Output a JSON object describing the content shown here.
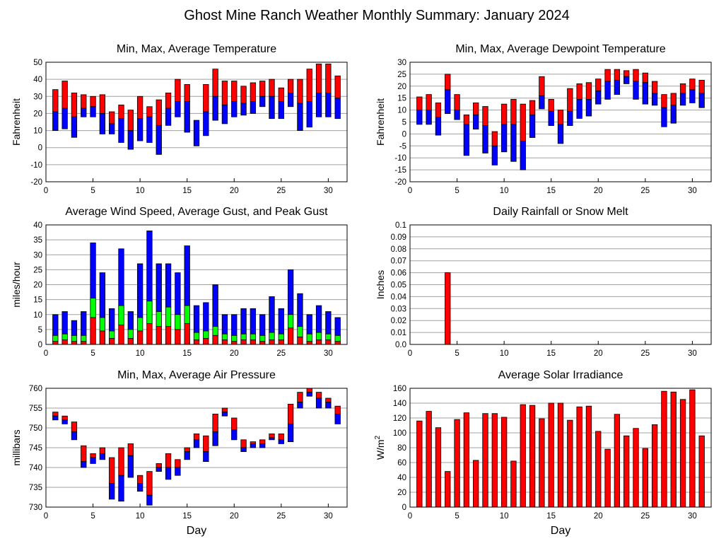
{
  "title": "Ghost Mine Ranch Weather Monthly Summary: January 2024",
  "colors": {
    "max": "#ff0000",
    "min": "#0000ff",
    "mid": "#00ff00",
    "grid": "#a0a0a0"
  },
  "chart_data": [
    {
      "type": "bar",
      "title": "Min, Max, Average Temperature",
      "ylabel": "Fahrenheit",
      "xlabel": "",
      "xlim": [
        0,
        32
      ],
      "ylim": [
        -20,
        50
      ],
      "yticks": [
        -20,
        -10,
        0,
        10,
        20,
        30,
        40,
        50
      ],
      "xticks": [
        0,
        5,
        10,
        15,
        20,
        25,
        30
      ],
      "x": [
        1,
        2,
        3,
        4,
        5,
        6,
        7,
        8,
        9,
        10,
        11,
        12,
        13,
        14,
        15,
        16,
        17,
        18,
        19,
        20,
        21,
        22,
        23,
        24,
        25,
        26,
        27,
        28,
        29,
        30,
        31
      ],
      "series": [
        {
          "name": "max",
          "values": [
            34,
            39,
            32,
            31,
            30,
            31,
            21,
            25,
            22,
            30,
            24,
            28,
            32,
            40,
            37,
            16,
            37,
            46,
            39,
            39,
            36,
            38,
            39,
            40,
            35,
            40,
            40,
            46,
            49,
            49,
            42
          ]
        },
        {
          "name": "avg",
          "values": [
            21,
            23,
            18,
            23,
            24,
            20,
            14,
            17,
            10,
            17,
            18,
            13,
            23,
            27,
            27,
            16,
            21,
            30,
            25,
            27,
            26,
            27,
            30,
            30,
            27,
            32,
            26,
            27,
            32,
            32,
            29
          ]
        },
        {
          "name": "min",
          "values": [
            10,
            11,
            6,
            18,
            18,
            8,
            8,
            3,
            -1,
            4,
            3,
            -4,
            13,
            18,
            9,
            1,
            7,
            16,
            14,
            18,
            19,
            20,
            24,
            17,
            17,
            24,
            10,
            12,
            18,
            18,
            17
          ]
        }
      ]
    },
    {
      "type": "bar",
      "title": "Min, Max, Average Dewpoint Temperature",
      "ylabel": "Fahrenheit",
      "xlabel": "",
      "xlim": [
        0,
        32
      ],
      "ylim": [
        -20,
        30
      ],
      "yticks": [
        -20,
        -15,
        -10,
        -5,
        0,
        5,
        10,
        15,
        20,
        25,
        30
      ],
      "xticks": [
        0,
        5,
        10,
        15,
        20,
        25,
        30
      ],
      "x": [
        1,
        2,
        3,
        4,
        5,
        6,
        7,
        8,
        9,
        10,
        11,
        12,
        13,
        14,
        15,
        16,
        17,
        18,
        19,
        20,
        21,
        22,
        23,
        24,
        25,
        26,
        27,
        28,
        29,
        30,
        31
      ],
      "series": [
        {
          "name": "max",
          "values": [
            15.5,
            16.5,
            13,
            25,
            16.5,
            8,
            13,
            11.5,
            1,
            12.5,
            14.5,
            12.5,
            14,
            24,
            14.5,
            10,
            19,
            21,
            21.5,
            23,
            27,
            27,
            26.5,
            27,
            25.5,
            22,
            16.5,
            17,
            21,
            23,
            22.5
          ]
        },
        {
          "name": "avg",
          "values": [
            10,
            10,
            7,
            18.5,
            10,
            4,
            8,
            3.5,
            -5,
            4,
            4,
            -3,
            8,
            16,
            9.5,
            4,
            9.5,
            14.5,
            14.5,
            18,
            22,
            22.5,
            24,
            22,
            21.5,
            17,
            11,
            12,
            17,
            18.5,
            17
          ]
        },
        {
          "name": "min",
          "values": [
            4,
            4,
            -0.5,
            8.5,
            6,
            -9,
            2,
            -8,
            -13,
            -7.5,
            -11.5,
            -15,
            -1.5,
            10.5,
            3.5,
            -4,
            3.5,
            6.5,
            7.5,
            12.5,
            14.5,
            16.5,
            21,
            14.5,
            12.5,
            12,
            3,
            4.5,
            12,
            13,
            11
          ]
        }
      ]
    },
    {
      "type": "bar",
      "title": "Average Wind Speed, Average Gust, and Peak Gust",
      "ylabel": "miles/hour",
      "xlabel": "",
      "xlim": [
        0,
        32
      ],
      "ylim": [
        0,
        40
      ],
      "yticks": [
        0,
        5,
        10,
        15,
        20,
        25,
        30,
        35,
        40
      ],
      "xticks": [
        0,
        5,
        10,
        15,
        20,
        25,
        30
      ],
      "x": [
        1,
        2,
        3,
        4,
        5,
        6,
        7,
        8,
        9,
        10,
        11,
        12,
        13,
        14,
        15,
        16,
        17,
        18,
        19,
        20,
        21,
        22,
        23,
        24,
        25,
        26,
        27,
        28,
        29,
        30,
        31
      ],
      "series": [
        {
          "name": "peak gust",
          "values": [
            10,
            11,
            8,
            11,
            34,
            24,
            12,
            32,
            11,
            27,
            38,
            27,
            27,
            24,
            33,
            13,
            14,
            20,
            10,
            10,
            12,
            12,
            10,
            16,
            12,
            25,
            17,
            10,
            13,
            11,
            9
          ]
        },
        {
          "name": "avg gust",
          "values": [
            3,
            3.5,
            3,
            3,
            15.5,
            9,
            4.5,
            13,
            5,
            9,
            14.5,
            11,
            12.5,
            10,
            13,
            4,
            4.5,
            6,
            3.5,
            3,
            3.5,
            3.5,
            3,
            4,
            3.5,
            10,
            6,
            3.5,
            4,
            3.5,
            3
          ]
        },
        {
          "name": "avg wind",
          "values": [
            1,
            1.5,
            1,
            1,
            9,
            4.5,
            2,
            6.5,
            2,
            4.5,
            7,
            6,
            6,
            5,
            7,
            1.5,
            2,
            3,
            1.5,
            1,
            1.5,
            1.5,
            1,
            1.5,
            1.5,
            5.5,
            2.5,
            1,
            1.5,
            1.5,
            1
          ]
        }
      ]
    },
    {
      "type": "bar",
      "title": "Daily Rainfall or Snow Melt",
      "ylabel": "Inches",
      "xlabel": "",
      "xlim": [
        0,
        32
      ],
      "ylim": [
        0,
        0.1
      ],
      "yticks": [
        "0.0",
        "0.01",
        "0.02",
        "0.03",
        "0.04",
        "0.05",
        "0.06",
        "0.07",
        "0.08",
        "0.09",
        "0.1"
      ],
      "xticks": [
        0,
        5,
        10,
        15,
        20,
        25,
        30
      ],
      "x": [
        1,
        2,
        3,
        4,
        5,
        6,
        7,
        8,
        9,
        10,
        11,
        12,
        13,
        14,
        15,
        16,
        17,
        18,
        19,
        20,
        21,
        22,
        23,
        24,
        25,
        26,
        27,
        28,
        29,
        30,
        31
      ],
      "values": [
        0,
        0,
        0,
        0.06,
        0,
        0,
        0,
        0,
        0,
        0,
        0,
        0,
        0,
        0,
        0,
        0,
        0,
        0,
        0,
        0,
        0,
        0,
        0,
        0,
        0,
        0,
        0,
        0,
        0,
        0,
        0
      ]
    },
    {
      "type": "bar",
      "title": "Min, Max, Average Air Pressure",
      "ylabel": "millibars",
      "xlabel": "Day",
      "xlim": [
        0,
        32
      ],
      "ylim": [
        730,
        760
      ],
      "yticks": [
        730,
        735,
        740,
        745,
        750,
        755,
        760
      ],
      "xticks": [
        0,
        5,
        10,
        15,
        20,
        25,
        30
      ],
      "x": [
        1,
        2,
        3,
        4,
        5,
        6,
        7,
        8,
        9,
        10,
        11,
        12,
        13,
        14,
        15,
        16,
        17,
        18,
        19,
        20,
        21,
        22,
        23,
        24,
        25,
        26,
        27,
        28,
        29,
        30,
        31
      ],
      "series": [
        {
          "name": "max",
          "values": [
            754,
            753,
            751.5,
            745.5,
            743.5,
            745,
            742.5,
            745,
            746,
            738,
            739,
            741,
            743.5,
            742,
            745,
            748.5,
            748,
            753.5,
            755,
            752.5,
            747,
            746.5,
            747,
            748.5,
            748.5,
            756,
            759,
            760,
            759,
            757.5,
            755.5
          ]
        },
        {
          "name": "avg",
          "values": [
            753,
            752,
            749,
            741.5,
            742.5,
            743.5,
            736,
            738,
            743,
            736,
            733,
            740,
            740,
            740,
            744,
            747,
            744,
            749,
            754,
            749.5,
            745,
            746,
            746,
            747.5,
            747,
            751,
            756.5,
            759,
            757.5,
            756.5,
            753.5
          ]
        },
        {
          "name": "min",
          "values": [
            752,
            751,
            747,
            740,
            741,
            742,
            732,
            731.5,
            737.5,
            734,
            730.5,
            739,
            737,
            738,
            742,
            745,
            741.5,
            745.5,
            753,
            747,
            744,
            745,
            745,
            747,
            746,
            746.5,
            755,
            758,
            755,
            755,
            751
          ]
        }
      ]
    },
    {
      "type": "bar",
      "title": "Average Solar Irradiance",
      "ylabel": "W/m",
      "ylabel_sup": "2",
      "xlabel": "Day",
      "xlim": [
        0,
        32
      ],
      "ylim": [
        0,
        160
      ],
      "yticks": [
        0,
        20,
        40,
        60,
        80,
        100,
        120,
        140,
        160
      ],
      "xticks": [
        0,
        5,
        10,
        15,
        20,
        25,
        30
      ],
      "x": [
        1,
        2,
        3,
        4,
        5,
        6,
        7,
        8,
        9,
        10,
        11,
        12,
        13,
        14,
        15,
        16,
        17,
        18,
        19,
        20,
        21,
        22,
        23,
        24,
        25,
        26,
        27,
        28,
        29,
        30,
        31
      ],
      "values": [
        116,
        129,
        107,
        48,
        118,
        127,
        63,
        126,
        126,
        121,
        62,
        138,
        137,
        119,
        140,
        140,
        117,
        135,
        136,
        102,
        78,
        125,
        96,
        106,
        79,
        111,
        156,
        155,
        145,
        158,
        96
      ]
    }
  ]
}
